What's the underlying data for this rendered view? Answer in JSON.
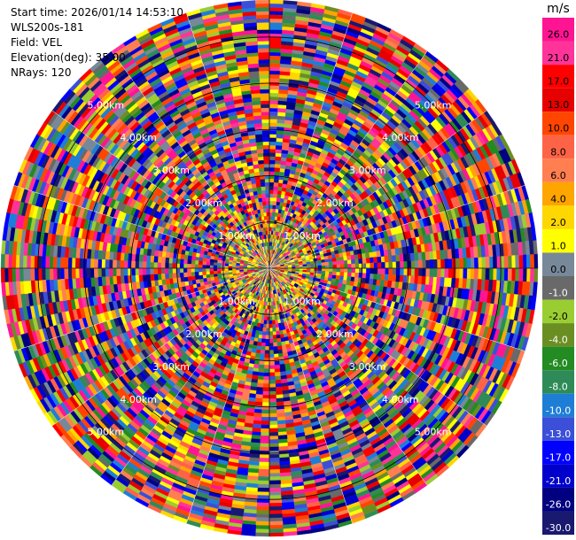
{
  "info": {
    "start_time": "Start time: 2026/01/14 14:53:10",
    "instrument": "WLS200s-181",
    "field": "Field: VEL",
    "elevation": "Elevation(deg): 35.00",
    "nrays": "NRays: 120"
  },
  "chart_data": {
    "type": "heatmap",
    "projection": "polar PPI",
    "field": "VEL",
    "n_rays": 120,
    "range_rings_km": [
      1,
      2,
      3,
      4,
      5
    ],
    "range_ring_labels": [
      "1.00km",
      "2.00km",
      "3.00km",
      "4.00km",
      "5.00km"
    ],
    "max_range_km": 5.8,
    "colorbar": {
      "unit": "m/s",
      "tick_labels": [
        "26.0",
        "21.0",
        "17.0",
        "13.0",
        "10.0",
        "8.0",
        "6.0",
        "4.0",
        "2.0",
        "1.0",
        "0.0",
        "-1.0",
        "-2.0",
        "-4.0",
        "-6.0",
        "-8.0",
        "-10.0",
        "-13.0",
        "-17.0",
        "-21.0",
        "-26.0",
        "-30.0"
      ],
      "colors": [
        "#ff1493",
        "#ff3399",
        "#ff0000",
        "#e60000",
        "#ff4500",
        "#ff6347",
        "#ff7f50",
        "#ffa500",
        "#ffd700",
        "#ffff00",
        "#778899",
        "#696969",
        "#9acd32",
        "#6b8e23",
        "#228b22",
        "#2e8b57",
        "#1e7ed6",
        "#3c4fd8",
        "#0000ff",
        "#0000cd",
        "#000080",
        "#191970"
      ]
    }
  }
}
